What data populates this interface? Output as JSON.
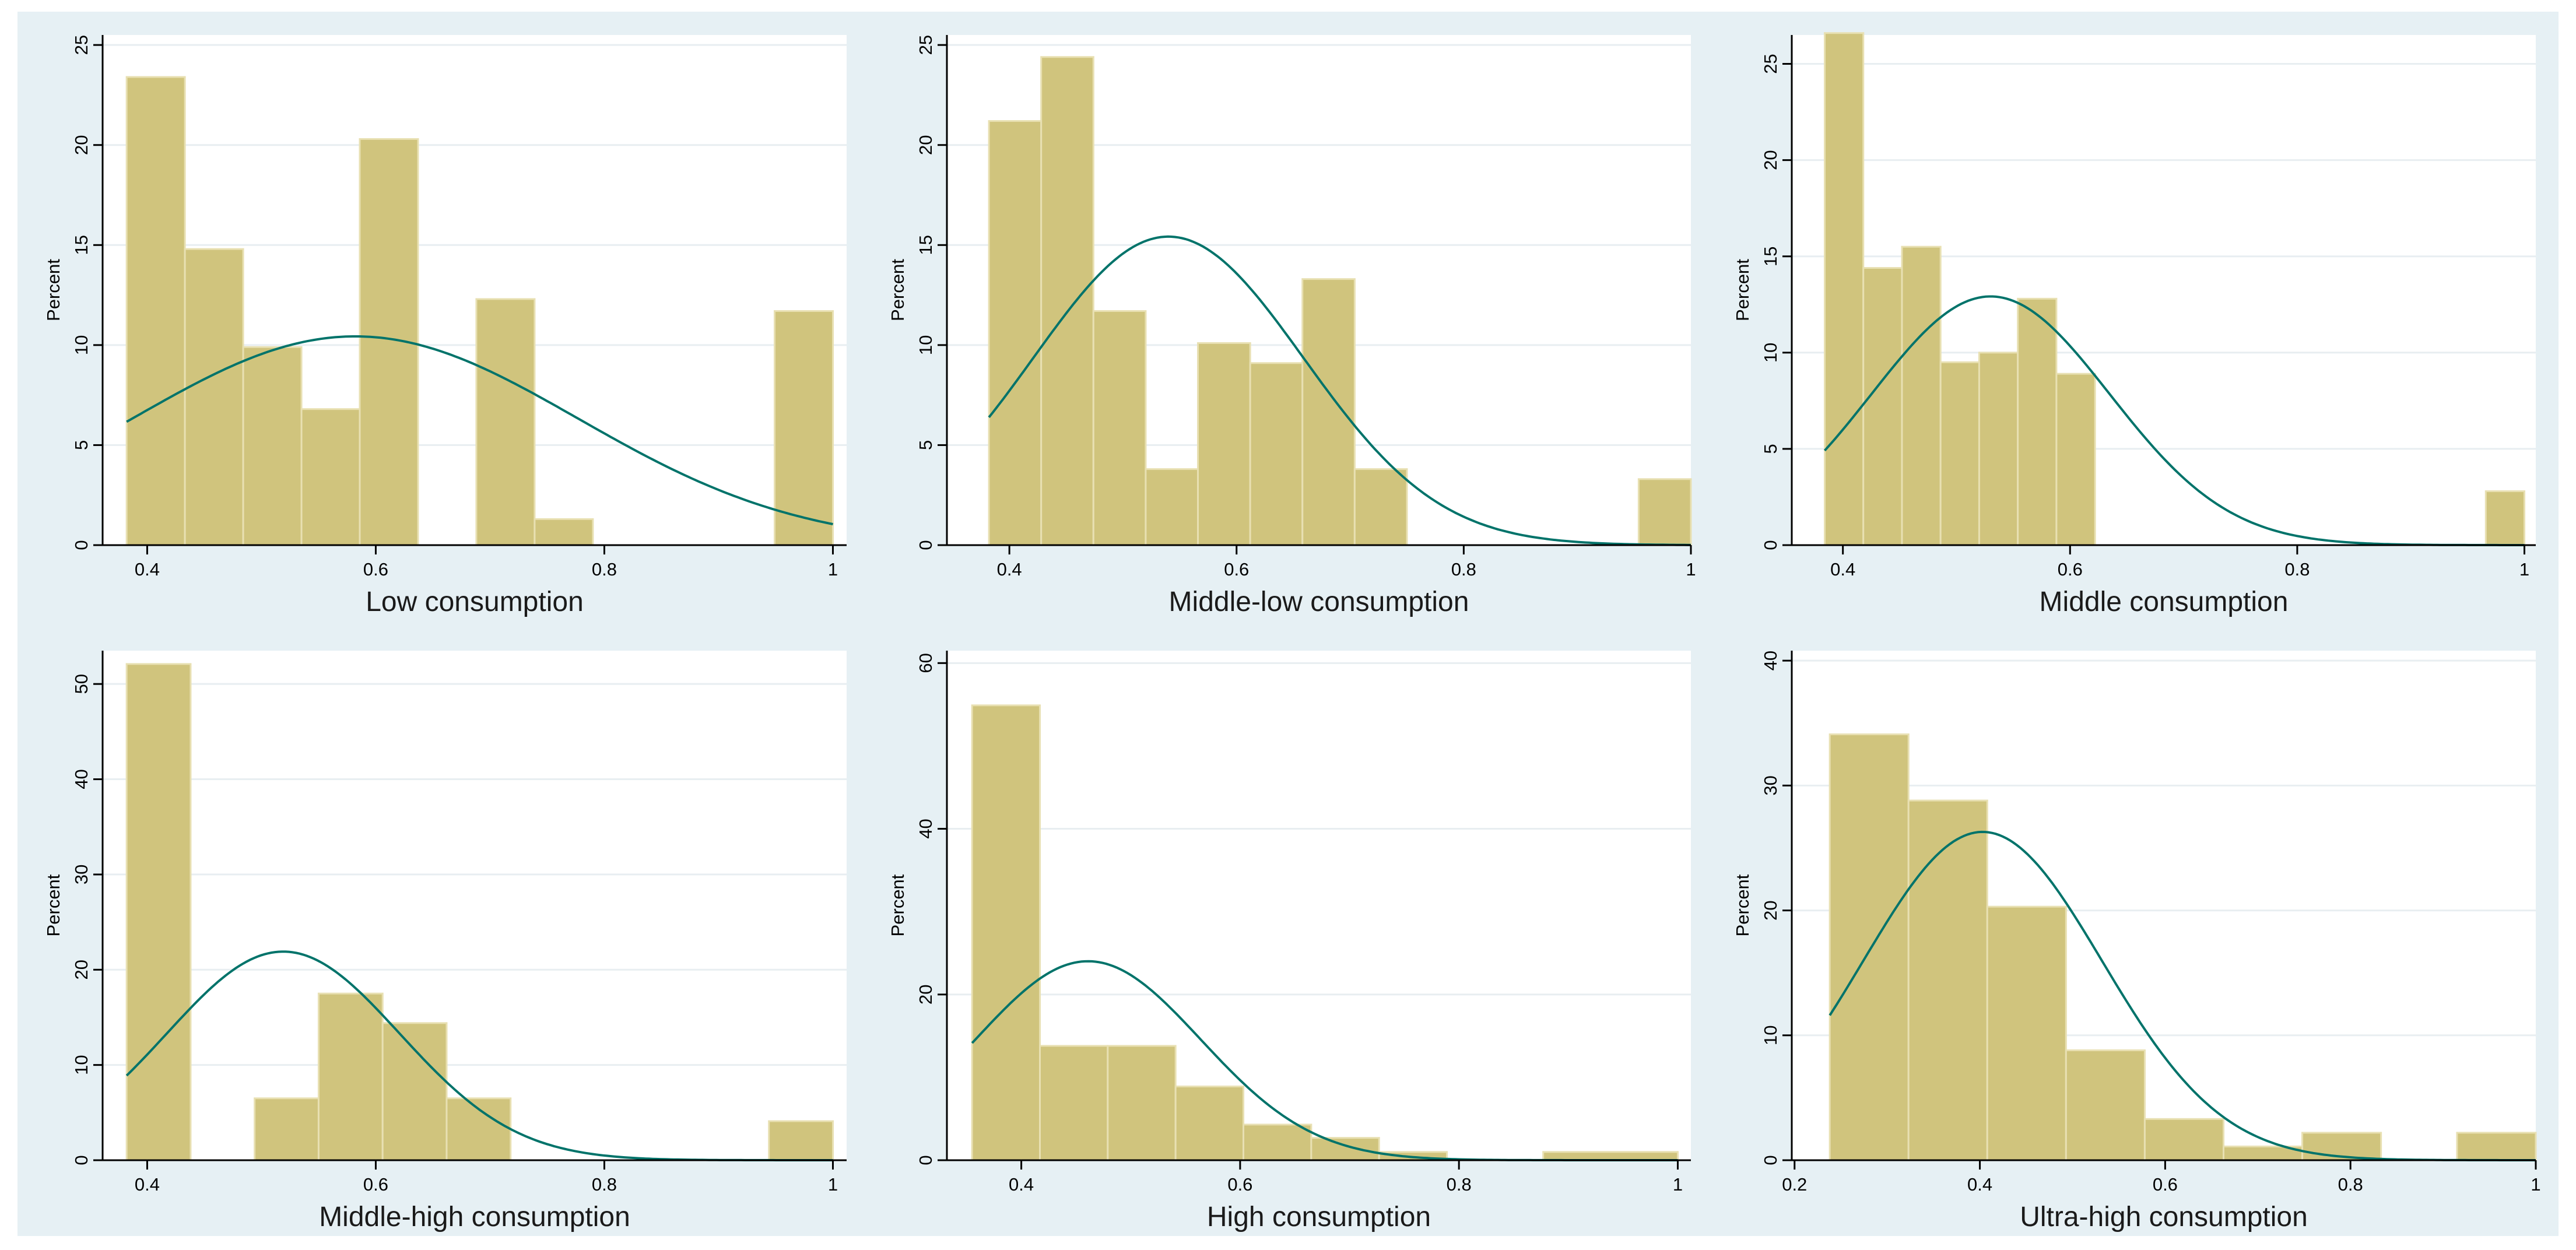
{
  "colors": {
    "outer_bg": "#e6f0f4",
    "plot_bg": "#ffffff",
    "bar_fill": "#d0c47d",
    "bar_edge": "#e8e0b2",
    "curve": "#00736a",
    "grid": "#e8eef1",
    "axis": "#000000"
  },
  "chart_data": [
    {
      "type": "bar",
      "title": "Low consumption",
      "ylabel": "Percent",
      "xlim": [
        0.361,
        1.012
      ],
      "ylim": [
        0,
        25.5
      ],
      "xticks": [
        0.4,
        0.6,
        0.8,
        1
      ],
      "xtick_labels": [
        "0.4",
        "0.6",
        "0.8",
        "1"
      ],
      "yticks": [
        0,
        5,
        10,
        15,
        20,
        25
      ],
      "ytick_labels": [
        "0",
        "5",
        "10",
        "15",
        "20",
        "25"
      ],
      "bins": [
        [
          0.382,
          0.433,
          23.4
        ],
        [
          0.433,
          0.484,
          14.8
        ],
        [
          0.484,
          0.535,
          9.9
        ],
        [
          0.535,
          0.586,
          6.8
        ],
        [
          0.586,
          0.637,
          20.3
        ],
        [
          0.688,
          0.739,
          12.3
        ],
        [
          0.739,
          0.79,
          1.3
        ],
        [
          0.949,
          1.0,
          11.7
        ]
      ],
      "normal_curve": {
        "mean": 0.582,
        "sd": 0.195,
        "x": [
          0.382,
          1.0
        ]
      }
    },
    {
      "type": "bar",
      "title": "Middle-low consumption",
      "ylabel": "Percent",
      "xlim": [
        0.345,
        1.0
      ],
      "ylim": [
        0,
        25.5
      ],
      "xticks": [
        0.4,
        0.6,
        0.8,
        1
      ],
      "xtick_labels": [
        "0.4",
        "0.6",
        "0.8",
        "1"
      ],
      "yticks": [
        0,
        5,
        10,
        15,
        20,
        25
      ],
      "ytick_labels": [
        "0",
        "5",
        "10",
        "15",
        "20",
        "25"
      ],
      "bins": [
        [
          0.382,
          0.428,
          21.2
        ],
        [
          0.428,
          0.474,
          24.4
        ],
        [
          0.474,
          0.52,
          11.7
        ],
        [
          0.52,
          0.566,
          3.8
        ],
        [
          0.566,
          0.612,
          10.1
        ],
        [
          0.612,
          0.658,
          9.1
        ],
        [
          0.658,
          0.704,
          13.3
        ],
        [
          0.704,
          0.75,
          3.8
        ],
        [
          0.954,
          1.0,
          3.3
        ]
      ],
      "normal_curve": {
        "mean": 0.54,
        "sd": 0.119,
        "x": [
          0.382,
          1.0
        ]
      }
    },
    {
      "type": "bar",
      "title": "Middle consumption",
      "ylabel": "Percent",
      "xlim": [
        0.355,
        1.01
      ],
      "ylim": [
        0,
        26.5
      ],
      "xticks": [
        0.4,
        0.6,
        0.8,
        1
      ],
      "xtick_labels": [
        "0.4",
        "0.6",
        "0.8",
        "1"
      ],
      "yticks": [
        0,
        5,
        10,
        15,
        20,
        25
      ],
      "ytick_labels": [
        "0",
        "5",
        "10",
        "15",
        "20",
        "25"
      ],
      "bins": [
        [
          0.384,
          0.418,
          26.6
        ],
        [
          0.418,
          0.452,
          14.4
        ],
        [
          0.452,
          0.486,
          15.5
        ],
        [
          0.486,
          0.52,
          9.5
        ],
        [
          0.52,
          0.554,
          10.0
        ],
        [
          0.554,
          0.588,
          12.8
        ],
        [
          0.588,
          0.622,
          8.9
        ],
        [
          0.966,
          1.0,
          2.8
        ]
      ],
      "normal_curve": {
        "mean": 0.53,
        "sd": 0.105,
        "x": [
          0.384,
          1.0
        ]
      }
    },
    {
      "type": "bar",
      "title": "Middle-high consumption",
      "ylabel": "Percent",
      "xlim": [
        0.361,
        1.012
      ],
      "ylim": [
        0,
        53.5
      ],
      "xticks": [
        0.4,
        0.6,
        0.8,
        1
      ],
      "xtick_labels": [
        "0.4",
        "0.6",
        "0.8",
        "1"
      ],
      "yticks": [
        0,
        10,
        20,
        30,
        40,
        50
      ],
      "ytick_labels": [
        "0",
        "10",
        "20",
        "30",
        "40",
        "50"
      ],
      "bins": [
        [
          0.382,
          0.438,
          52.1
        ],
        [
          0.494,
          0.55,
          6.5
        ],
        [
          0.55,
          0.606,
          17.5
        ],
        [
          0.606,
          0.662,
          14.4
        ],
        [
          0.662,
          0.718,
          6.5
        ],
        [
          0.944,
          1.0,
          4.1
        ]
      ],
      "normal_curve": {
        "mean": 0.519,
        "sd": 0.102,
        "x": [
          0.382,
          1.0
        ]
      }
    },
    {
      "type": "bar",
      "title": "High consumption",
      "ylabel": "Percent",
      "xlim": [
        0.332,
        1.012
      ],
      "ylim": [
        0,
        61.5
      ],
      "xticks": [
        0.4,
        0.6,
        0.8,
        1
      ],
      "xtick_labels": [
        "0.4",
        "0.6",
        "0.8",
        "1"
      ],
      "yticks": [
        0,
        20,
        40,
        60
      ],
      "ytick_labels": [
        "0",
        "20",
        "40",
        "60"
      ],
      "bins": [
        [
          0.355,
          0.417,
          54.9
        ],
        [
          0.417,
          0.479,
          13.8
        ],
        [
          0.479,
          0.541,
          13.8
        ],
        [
          0.541,
          0.603,
          8.9
        ],
        [
          0.603,
          0.665,
          4.3
        ],
        [
          0.665,
          0.727,
          2.7
        ],
        [
          0.727,
          0.789,
          1.0
        ],
        [
          0.877,
          1.0,
          1.0
        ]
      ],
      "normal_curve": {
        "mean": 0.461,
        "sd": 0.103,
        "x": [
          0.355,
          1.0
        ]
      }
    },
    {
      "type": "bar",
      "title": "Ultra-high consumption",
      "ylabel": "Percent",
      "xlim": [
        0.197,
        1.0
      ],
      "ylim": [
        0,
        40.8
      ],
      "xticks": [
        0.2,
        0.4,
        0.6,
        0.8,
        1
      ],
      "xtick_labels": [
        "0.2",
        "0.4",
        "0.6",
        "0.8",
        "1"
      ],
      "yticks": [
        0,
        10,
        20,
        30,
        40
      ],
      "ytick_labels": [
        "0",
        "10",
        "20",
        "30",
        "40"
      ],
      "bins": [
        [
          0.238,
          0.323,
          34.1
        ],
        [
          0.323,
          0.408,
          28.8
        ],
        [
          0.408,
          0.493,
          20.3
        ],
        [
          0.493,
          0.578,
          8.8
        ],
        [
          0.578,
          0.663,
          3.3
        ],
        [
          0.663,
          0.748,
          1.1
        ],
        [
          0.748,
          0.833,
          2.2
        ],
        [
          0.915,
          1.0,
          2.2
        ]
      ],
      "normal_curve": {
        "mean": 0.403,
        "sd": 0.129,
        "x": [
          0.238,
          1.0
        ]
      }
    }
  ]
}
